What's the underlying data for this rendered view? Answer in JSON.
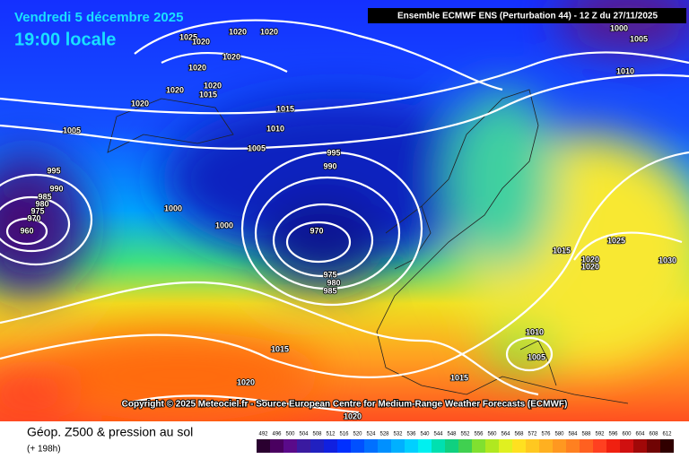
{
  "header": {
    "date": "Vendredi 5 décembre 2025",
    "time": "19:00 locale",
    "model": "Ensemble ECMWF ENS  (Perturbation 44)  - 12 Z du 27/11/2025"
  },
  "copyright": "Copyright © 2025 Meteociel.fr - Source European Centre for Medium-Range Weather Forecasts (ECMWF)",
  "footer": {
    "title": "Géop. Z500 & pression au sol",
    "lead": "(+ 198h)"
  },
  "legend": {
    "values": [
      492,
      496,
      500,
      504,
      508,
      512,
      516,
      520,
      524,
      528,
      532,
      536,
      540,
      544,
      548,
      552,
      556,
      560,
      564,
      568,
      572,
      576,
      580,
      584,
      588,
      592,
      596,
      600,
      604,
      608,
      612
    ]
  },
  "isobar_labels": [
    1025,
    1020,
    1020,
    1020,
    1020,
    1020,
    1020,
    1020,
    1015,
    1020,
    1015,
    1010,
    1005,
    1005,
    995,
    990,
    995,
    990,
    985,
    980,
    975,
    970,
    960,
    1000,
    1000,
    970,
    975,
    980,
    985,
    1015,
    1020,
    1020,
    1015,
    1005,
    1010,
    1015,
    1020,
    1020,
    1025,
    1030,
    1010,
    1000,
    1005
  ]
}
